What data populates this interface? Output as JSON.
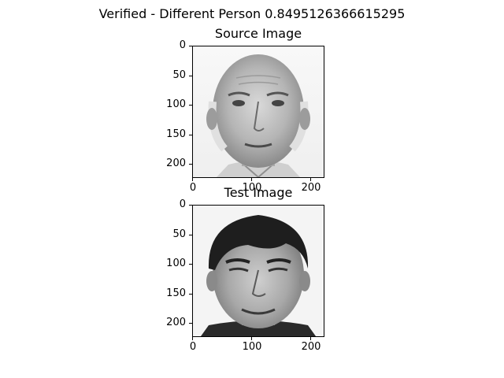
{
  "figure": {
    "suptitle": "Verified - Different Person 0.8495126366615295"
  },
  "panels": [
    {
      "title": "Source Image",
      "image_description": "grayscale portrait of older balding man",
      "yticks": [
        "0",
        "50",
        "100",
        "150",
        "200"
      ],
      "xticks": [
        "0",
        "100",
        "200"
      ]
    },
    {
      "title": "Test Image",
      "image_description": "grayscale portrait of young man with dark hair",
      "yticks": [
        "0",
        "50",
        "100",
        "150",
        "200"
      ],
      "xticks": [
        "0",
        "100",
        "200"
      ]
    }
  ]
}
